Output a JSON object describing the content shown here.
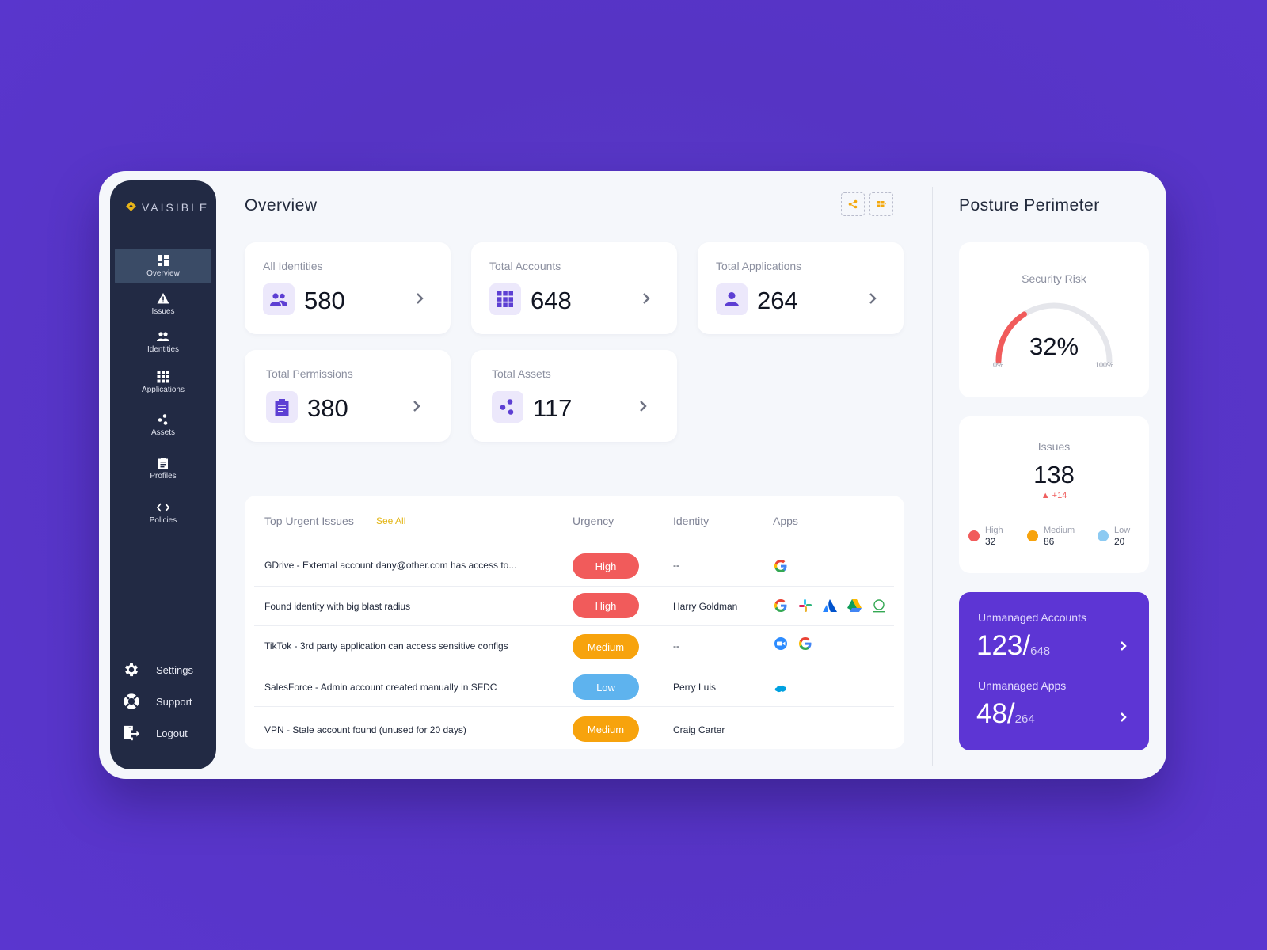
{
  "app": {
    "logo_text": "VAISIBLE"
  },
  "sidebar": {
    "items": [
      {
        "label": "Overview",
        "icon": "dashboard-icon",
        "active": true
      },
      {
        "label": "Issues",
        "icon": "warning-icon"
      },
      {
        "label": "Identities",
        "icon": "people-icon"
      },
      {
        "label": "Applications",
        "icon": "grid-icon"
      },
      {
        "label": "Assets",
        "icon": "assets-icon"
      },
      {
        "label": "Profiles",
        "icon": "clipboard-icon"
      },
      {
        "label": "Policies",
        "icon": "code-icon"
      }
    ],
    "bottom": [
      {
        "label": "Settings",
        "icon": "gear-icon"
      },
      {
        "label": "Support",
        "icon": "lifebuoy-icon"
      },
      {
        "label": "Logout",
        "icon": "logout-icon"
      }
    ]
  },
  "main": {
    "title": "Overview",
    "stats": [
      {
        "label": "All Identities",
        "value": "580",
        "icon": "people-icon"
      },
      {
        "label": "Total Accounts",
        "value": "648",
        "icon": "grid-icon"
      },
      {
        "label": "Total Applications",
        "value": "264",
        "icon": "person-icon"
      },
      {
        "label": "Total Permissions",
        "value": "380",
        "icon": "clipboard-icon"
      },
      {
        "label": "Total Assets",
        "value": "117",
        "icon": "assets-icon"
      }
    ],
    "issues_table": {
      "title": "Top Urgent Issues",
      "see_all": "See All",
      "columns": [
        "Urgency",
        "Identity",
        "Apps"
      ],
      "rows": [
        {
          "issue": "GDrive - External account dany@other.com has access to...",
          "urgency": "High",
          "identity": "--",
          "apps": [
            "google"
          ]
        },
        {
          "issue": "Found identity with big blast radius",
          "urgency": "High",
          "identity": "Harry Goldman",
          "apps": [
            "google",
            "slack",
            "atlassian",
            "google-drive",
            "other"
          ]
        },
        {
          "issue": "TikTok - 3rd party application can access sensitive configs",
          "urgency": "Medium",
          "identity": "--",
          "apps": [
            "zoom",
            "google"
          ]
        },
        {
          "issue": "SalesForce - Admin account created manually in SFDC",
          "urgency": "Low",
          "identity": "Perry Luis",
          "apps": [
            "salesforce"
          ]
        },
        {
          "issue": "VPN - Stale account found (unused for 20 days)",
          "urgency": "Medium",
          "identity": "Craig Carter",
          "apps": []
        }
      ]
    }
  },
  "colors": {
    "high": "#f15b5b",
    "medium": "#f7a30d",
    "low": "#5eb3ee",
    "accent": "#5d35d4"
  },
  "posture": {
    "title": "Posture Perimeter",
    "security_risk": {
      "label": "Security Risk",
      "value": "32%",
      "fraction": 0.32,
      "min_label": "0%",
      "max_label": "100%"
    },
    "issues": {
      "label": "Issues",
      "total": "138",
      "delta": "+14",
      "breakdown": [
        {
          "label": "High",
          "count": "32"
        },
        {
          "label": "Medium",
          "count": "86"
        },
        {
          "label": "Low",
          "count": "20"
        }
      ]
    },
    "unmanaged": {
      "accounts_label": "Unmanaged Accounts",
      "accounts_value": "123/",
      "accounts_total": "648",
      "apps_label": "Unmanaged Apps",
      "apps_value": "48/",
      "apps_total": "264"
    }
  }
}
